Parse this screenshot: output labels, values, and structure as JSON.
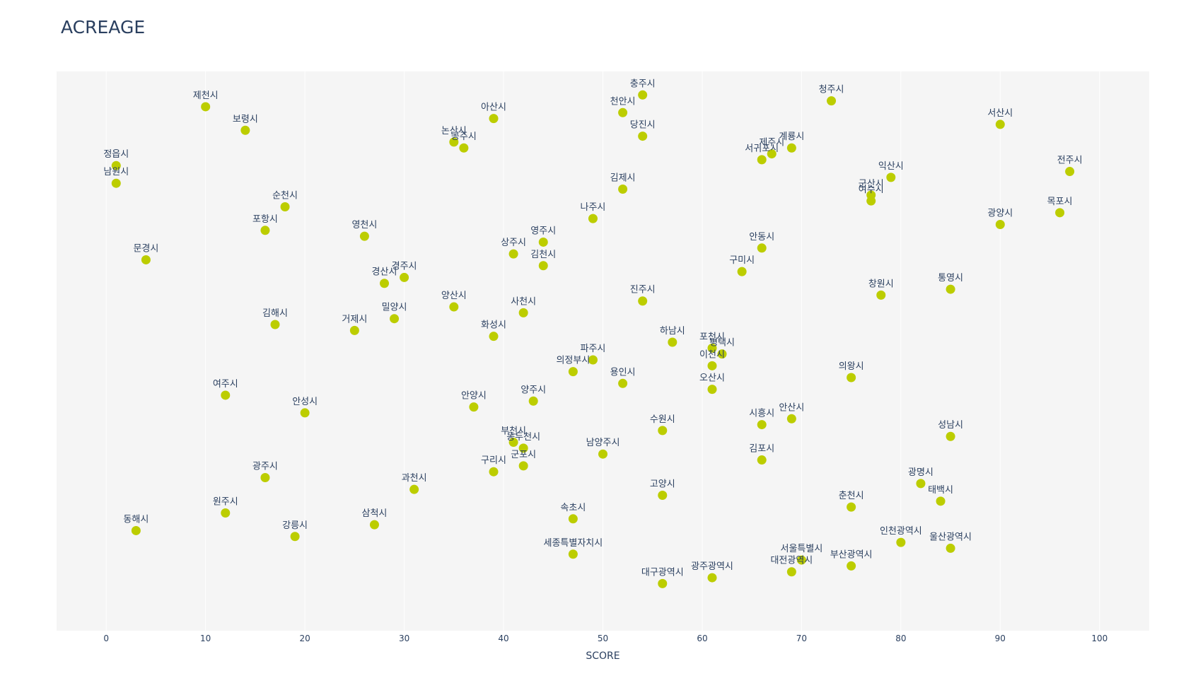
{
  "chart_data": {
    "type": "scatter",
    "title": "ACREAGE",
    "xlabel": "SCORE",
    "ylabel": "",
    "xlim": [
      -5,
      105
    ],
    "ylim": [
      0,
      95
    ],
    "xticks": [
      0,
      10,
      20,
      30,
      40,
      50,
      60,
      70,
      80,
      90,
      100
    ],
    "marker_color": "#bccd00",
    "background_color": "#f5f5f5",
    "grid_color": "#ffffff",
    "grid": true,
    "points": [
      {
        "label": "충주시",
        "x": 54,
        "y": 91
      },
      {
        "label": "청주시",
        "x": 73,
        "y": 90
      },
      {
        "label": "제천시",
        "x": 10,
        "y": 89
      },
      {
        "label": "천안시",
        "x": 52,
        "y": 88
      },
      {
        "label": "아산시",
        "x": 39,
        "y": 87
      },
      {
        "label": "서산시",
        "x": 90,
        "y": 86
      },
      {
        "label": "보령시",
        "x": 14,
        "y": 85
      },
      {
        "label": "당진시",
        "x": 54,
        "y": 84
      },
      {
        "label": "논산시",
        "x": 35,
        "y": 83
      },
      {
        "label": "계룡시",
        "x": 69,
        "y": 82
      },
      {
        "label": "공주시",
        "x": 36,
        "y": 82
      },
      {
        "label": "제주시",
        "x": 67,
        "y": 81
      },
      {
        "label": "서귀포시",
        "x": 66,
        "y": 80
      },
      {
        "label": "정읍시",
        "x": 1,
        "y": 79
      },
      {
        "label": "전주시",
        "x": 97,
        "y": 78
      },
      {
        "label": "익산시",
        "x": 79,
        "y": 77
      },
      {
        "label": "남원시",
        "x": 1,
        "y": 76
      },
      {
        "label": "김제시",
        "x": 52,
        "y": 75
      },
      {
        "label": "군산시",
        "x": 77,
        "y": 74
      },
      {
        "label": "여수시",
        "x": 77,
        "y": 73
      },
      {
        "label": "순천시",
        "x": 18,
        "y": 72
      },
      {
        "label": "목포시",
        "x": 96,
        "y": 71
      },
      {
        "label": "나주시",
        "x": 49,
        "y": 70
      },
      {
        "label": "광양시",
        "x": 90,
        "y": 69
      },
      {
        "label": "포항시",
        "x": 16,
        "y": 68
      },
      {
        "label": "영천시",
        "x": 26,
        "y": 67
      },
      {
        "label": "영주시",
        "x": 44,
        "y": 66
      },
      {
        "label": "안동시",
        "x": 66,
        "y": 65
      },
      {
        "label": "상주시",
        "x": 41,
        "y": 64
      },
      {
        "label": "문경시",
        "x": 4,
        "y": 63
      },
      {
        "label": "김천시",
        "x": 44,
        "y": 62
      },
      {
        "label": "구미시",
        "x": 64,
        "y": 61
      },
      {
        "label": "경주시",
        "x": 30,
        "y": 60
      },
      {
        "label": "경산시",
        "x": 28,
        "y": 59
      },
      {
        "label": "통영시",
        "x": 85,
        "y": 58
      },
      {
        "label": "창원시",
        "x": 78,
        "y": 57
      },
      {
        "label": "진주시",
        "x": 54,
        "y": 56
      },
      {
        "label": "양산시",
        "x": 35,
        "y": 55
      },
      {
        "label": "사천시",
        "x": 42,
        "y": 54
      },
      {
        "label": "밀양시",
        "x": 29,
        "y": 53
      },
      {
        "label": "김해시",
        "x": 17,
        "y": 52
      },
      {
        "label": "거제시",
        "x": 25,
        "y": 51
      },
      {
        "label": "화성시",
        "x": 39,
        "y": 50
      },
      {
        "label": "하남시",
        "x": 57,
        "y": 49
      },
      {
        "label": "포천시",
        "x": 61,
        "y": 48
      },
      {
        "label": "평택시",
        "x": 62,
        "y": 47
      },
      {
        "label": "파주시",
        "x": 49,
        "y": 46
      },
      {
        "label": "이천시",
        "x": 61,
        "y": 45
      },
      {
        "label": "의정부시",
        "x": 47,
        "y": 44
      },
      {
        "label": "의왕시",
        "x": 75,
        "y": 43
      },
      {
        "label": "용인시",
        "x": 52,
        "y": 42
      },
      {
        "label": "오산시",
        "x": 61,
        "y": 41
      },
      {
        "label": "여주시",
        "x": 12,
        "y": 40
      },
      {
        "label": "양주시",
        "x": 43,
        "y": 39
      },
      {
        "label": "안양시",
        "x": 37,
        "y": 38
      },
      {
        "label": "안성시",
        "x": 20,
        "y": 37
      },
      {
        "label": "안산시",
        "x": 69,
        "y": 36
      },
      {
        "label": "시흥시",
        "x": 66,
        "y": 35
      },
      {
        "label": "수원시",
        "x": 56,
        "y": 34
      },
      {
        "label": "성남시",
        "x": 85,
        "y": 33
      },
      {
        "label": "부천시",
        "x": 41,
        "y": 32
      },
      {
        "label": "동두천시",
        "x": 42,
        "y": 31
      },
      {
        "label": "남양주시",
        "x": 50,
        "y": 30
      },
      {
        "label": "김포시",
        "x": 66,
        "y": 29
      },
      {
        "label": "군포시",
        "x": 42,
        "y": 28
      },
      {
        "label": "구리시",
        "x": 39,
        "y": 27
      },
      {
        "label": "광주시",
        "x": 16,
        "y": 26
      },
      {
        "label": "광명시",
        "x": 82,
        "y": 25
      },
      {
        "label": "과천시",
        "x": 31,
        "y": 24
      },
      {
        "label": "태백시",
        "x": 84,
        "y": 22
      },
      {
        "label": "고양시",
        "x": 56,
        "y": 23
      },
      {
        "label": "춘천시",
        "x": 75,
        "y": 21
      },
      {
        "label": "원주시",
        "x": 12,
        "y": 20
      },
      {
        "label": "속초시",
        "x": 47,
        "y": 19
      },
      {
        "label": "삼척시",
        "x": 27,
        "y": 18
      },
      {
        "label": "동해시",
        "x": 3,
        "y": 17
      },
      {
        "label": "강릉시",
        "x": 19,
        "y": 16
      },
      {
        "label": "인천광역시",
        "x": 80,
        "y": 15
      },
      {
        "label": "울산광역시",
        "x": 85,
        "y": 14
      },
      {
        "label": "세종특별자치시",
        "x": 47,
        "y": 13
      },
      {
        "label": "서울특별시",
        "x": 70,
        "y": 12
      },
      {
        "label": "부산광역시",
        "x": 75,
        "y": 11
      },
      {
        "label": "대전광역시",
        "x": 69,
        "y": 10
      },
      {
        "label": "광주광역시",
        "x": 61,
        "y": 9
      },
      {
        "label": "대구광역시",
        "x": 56,
        "y": 8
      }
    ]
  }
}
